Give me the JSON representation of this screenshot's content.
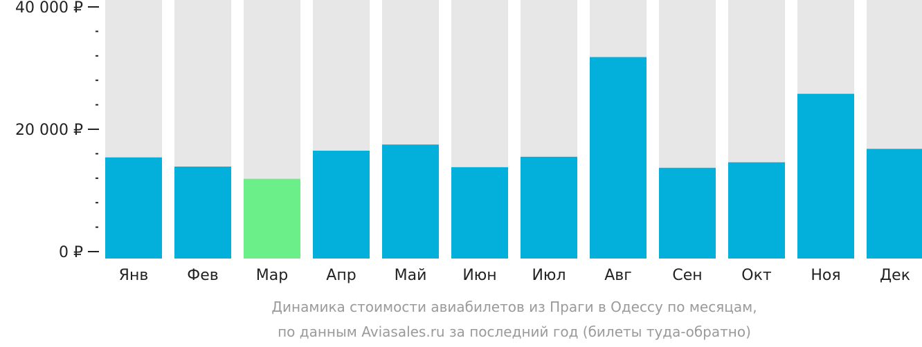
{
  "chart_data": {
    "type": "bar",
    "categories": [
      "Янв",
      "Фев",
      "Мар",
      "Апр",
      "Май",
      "Июн",
      "Июл",
      "Авг",
      "Сен",
      "Окт",
      "Ноя",
      "Дек"
    ],
    "values": [
      15400,
      13900,
      11900,
      16500,
      17500,
      13800,
      15500,
      31800,
      13700,
      14600,
      25800,
      16800
    ],
    "ylim": [
      0,
      41000
    ],
    "yticks": [
      {
        "value": 0,
        "label": "0 ₽"
      },
      {
        "value": 20000,
        "label": "20 000 ₽"
      },
      {
        "value": 40000,
        "label": "40 000 ₽"
      }
    ],
    "minor_tick_step": 4000,
    "highlight_index": 2,
    "colors": {
      "bar": "#03b0db",
      "highlight": "#6bf089",
      "background_bar": "#e7e7e7",
      "axis": "#222222"
    },
    "grid": false,
    "legend": "none"
  },
  "caption": {
    "line1": "Динамика стоимости авиабилетов из Праги в Одессу по месяцам,",
    "line2": "по данным Aviasales.ru за последний год (билеты туда-обратно)"
  }
}
